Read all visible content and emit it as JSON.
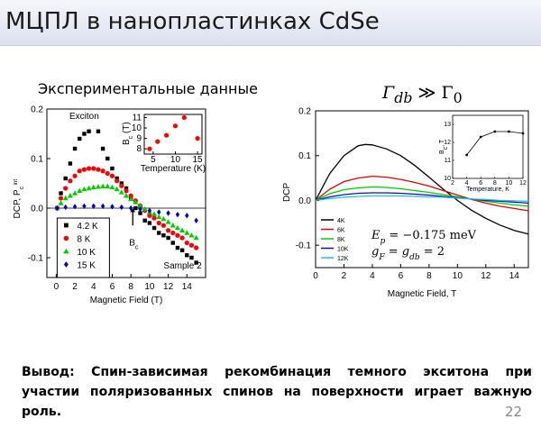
{
  "slide": {
    "title": "МЦПЛ в нанопластинках CdSe",
    "left_caption": "Экспериментальные данные",
    "right_caption": {
      "g1": "Γ",
      "s1": "db",
      "rel": "≫",
      "g2": "Γ",
      "s2": "0"
    },
    "conclusion": "Вывод: Спин-зависимая рекомбинация темного экситона при участии поляризованных спинов на поверхности играет важную роль.",
    "page_number": "22"
  },
  "chart_data": [
    {
      "type": "scatter",
      "xlabel": "Magnetic Field (T)",
      "ylabel": "DCP, P",
      "ylabel_sub": "c",
      "ylabel_sup": "int",
      "xlim": [
        -1,
        16
      ],
      "ylim": [
        -0.14,
        0.2
      ],
      "xticks": [
        "0",
        "2",
        "4",
        "6",
        "8",
        "10",
        "12",
        "14"
      ],
      "yticks": [
        "-0.1",
        "0.0",
        "0.1",
        "0.2"
      ],
      "annotations": {
        "exciton": "Exciton",
        "bc": "B",
        "bc_sub": "c",
        "sample": "Sample 2"
      },
      "legend_position": "lower-left",
      "series": [
        {
          "name": "4.2 K",
          "color": "#000000",
          "marker": "square",
          "x": [
            0.1,
            0.5,
            1.0,
            1.5,
            2.0,
            2.5,
            3.0,
            3.5,
            4.5,
            5.0,
            5.5,
            6.0,
            6.5,
            7.0,
            7.5,
            8.0,
            8.5,
            9.0,
            9.5,
            10.0,
            10.5,
            11.0,
            11.5,
            12.0,
            12.5,
            13.0,
            13.5,
            14.0,
            14.5,
            15.0
          ],
          "y": [
            0.0,
            0.03,
            0.06,
            0.09,
            0.12,
            0.14,
            0.15,
            0.155,
            0.155,
            0.12,
            0.1,
            0.08,
            0.06,
            0.05,
            0.04,
            0.02,
            0.0,
            -0.01,
            -0.025,
            -0.03,
            -0.04,
            -0.05,
            -0.055,
            -0.06,
            -0.07,
            -0.08,
            -0.085,
            -0.095,
            -0.1,
            -0.11
          ]
        },
        {
          "name": "8 K",
          "color": "#ff0000",
          "marker": "circle",
          "x": [
            0.1,
            0.5,
            1.0,
            1.5,
            2.0,
            2.5,
            3.0,
            3.5,
            4.0,
            4.5,
            5.0,
            5.5,
            6.0,
            6.5,
            7.0,
            7.5,
            8.0,
            8.5,
            9.0,
            9.5,
            10.0,
            10.5,
            11.0,
            11.5,
            12.0,
            12.5,
            13.0,
            13.5,
            14.0,
            14.5,
            15.0
          ],
          "y": [
            0.0,
            0.02,
            0.04,
            0.055,
            0.065,
            0.075,
            0.078,
            0.08,
            0.08,
            0.078,
            0.075,
            0.07,
            0.065,
            0.055,
            0.045,
            0.035,
            0.025,
            0.015,
            0.005,
            -0.005,
            -0.015,
            -0.02,
            -0.03,
            -0.035,
            -0.045,
            -0.05,
            -0.055,
            -0.06,
            -0.07,
            -0.075,
            -0.08
          ]
        },
        {
          "name": "10 K",
          "color": "#00cc00",
          "marker": "triangle",
          "x": [
            0.1,
            0.5,
            1.0,
            1.5,
            2.0,
            2.5,
            3.0,
            3.5,
            4.0,
            4.5,
            5.0,
            5.5,
            6.0,
            6.5,
            7.0,
            7.5,
            8.0,
            8.5,
            9.0,
            9.5,
            10.0,
            10.5,
            11.0,
            11.5,
            12.0,
            12.5,
            13.0,
            13.5,
            14.0,
            14.5,
            15.0
          ],
          "y": [
            0.0,
            0.01,
            0.02,
            0.025,
            0.03,
            0.035,
            0.038,
            0.04,
            0.042,
            0.043,
            0.044,
            0.044,
            0.042,
            0.038,
            0.032,
            0.025,
            0.018,
            0.012,
            0.005,
            -0.002,
            -0.008,
            -0.012,
            -0.018,
            -0.022,
            -0.028,
            -0.035,
            -0.04,
            -0.045,
            -0.05,
            -0.055,
            -0.06
          ]
        },
        {
          "name": "15 K",
          "color": "#0000cc",
          "marker": "diamond",
          "x": [
            0.1,
            1.0,
            2.0,
            3.0,
            4.0,
            5.0,
            6.0,
            7.0,
            8.0,
            9.0,
            10.0,
            11.0,
            12.0,
            13.0,
            14.0,
            15.0
          ],
          "y": [
            0.0,
            0.002,
            0.003,
            0.004,
            0.004,
            0.004,
            0.003,
            0.002,
            0.0,
            -0.002,
            -0.005,
            -0.008,
            -0.01,
            -0.013,
            -0.015,
            -0.025
          ]
        }
      ],
      "inset": {
        "xlabel": "Temperature (K)",
        "ylabel": "B",
        "ylabel_sub": "c",
        "ylabel_unit": "(T)",
        "xlim": [
          3,
          16
        ],
        "ylim": [
          7.5,
          11.3
        ],
        "xticks": [
          "5",
          "10",
          "15"
        ],
        "yticks": [
          "8",
          "9",
          "10",
          "11"
        ],
        "x": [
          4.2,
          6,
          8,
          10,
          12,
          15
        ],
        "y": [
          8.0,
          8.7,
          9.3,
          10.2,
          11.0,
          9.0
        ],
        "color": "#ff0000"
      }
    },
    {
      "type": "line",
      "xlabel": "Magnetic Field, T",
      "ylabel": "DCP",
      "xlim": [
        0,
        15
      ],
      "ylim": [
        -0.15,
        0.2
      ],
      "xticks": [
        "0",
        "2",
        "4",
        "6",
        "8",
        "10",
        "12",
        "14"
      ],
      "yticks": [
        "-0.1",
        "0.0",
        "0.1",
        "0.2"
      ],
      "legend_position": "lower-left",
      "equations": {
        "line1": {
          "v": "E",
          "sub": "p",
          "rest": " = −0.175 meV"
        },
        "line2": {
          "v1": "g",
          "sub1": "F",
          "eq1": " = ",
          "v2": "g",
          "sub2": "db",
          "rest": " = 2"
        }
      },
      "series": [
        {
          "name": "4K",
          "color": "#000000",
          "x": [
            0,
            1,
            2,
            3,
            3.5,
            4,
            5,
            6,
            7,
            8,
            9,
            10,
            11,
            12,
            13,
            14,
            15
          ],
          "y": [
            0,
            0.06,
            0.1,
            0.122,
            0.125,
            0.124,
            0.115,
            0.1,
            0.078,
            0.052,
            0.025,
            0.0,
            -0.022,
            -0.04,
            -0.055,
            -0.067,
            -0.075
          ]
        },
        {
          "name": "6K",
          "color": "#e00000",
          "x": [
            0,
            1,
            2,
            3,
            4,
            5,
            6,
            7,
            8,
            9,
            10,
            11,
            12,
            13,
            14,
            15
          ],
          "y": [
            0,
            0.025,
            0.042,
            0.05,
            0.054,
            0.052,
            0.047,
            0.04,
            0.032,
            0.022,
            0.012,
            0.002,
            -0.006,
            -0.013,
            -0.018,
            -0.023
          ]
        },
        {
          "name": "8K",
          "color": "#00cc00",
          "x": [
            0,
            1,
            2,
            3,
            4,
            5,
            6,
            7,
            8,
            9,
            10,
            11,
            12,
            13,
            14,
            15
          ],
          "y": [
            0,
            0.015,
            0.024,
            0.028,
            0.03,
            0.029,
            0.026,
            0.022,
            0.018,
            0.013,
            0.008,
            0.003,
            -0.002,
            -0.006,
            -0.01,
            -0.013
          ]
        },
        {
          "name": "10K",
          "color": "#1010aa",
          "x": [
            0,
            1,
            2,
            3,
            4,
            5,
            6,
            7,
            8,
            9,
            10,
            11,
            12,
            13,
            14,
            15
          ],
          "y": [
            0,
            0.008,
            0.013,
            0.016,
            0.017,
            0.017,
            0.016,
            0.014,
            0.012,
            0.009,
            0.006,
            0.003,
            0.0,
            -0.002,
            -0.004,
            -0.006
          ]
        },
        {
          "name": "12K",
          "color": "#22bbee",
          "x": [
            0,
            1,
            2,
            3,
            4,
            5,
            6,
            7,
            8,
            9,
            10,
            11,
            12,
            13,
            14,
            15
          ],
          "y": [
            0,
            0.004,
            0.007,
            0.009,
            0.01,
            0.01,
            0.01,
            0.009,
            0.008,
            0.007,
            0.005,
            0.003,
            0.002,
            0.0,
            -0.001,
            -0.002
          ]
        }
      ],
      "inset": {
        "xlabel": "Temperature, K",
        "ylabel": "B",
        "ylabel_sub": "c",
        "ylabel_unit": ", T",
        "xlim": [
          2,
          12
        ],
        "ylim": [
          10,
          13.5
        ],
        "xticks": [
          "2",
          "4",
          "6",
          "8",
          "10",
          "12"
        ],
        "yticks": [
          "10",
          "11",
          "12",
          "13"
        ],
        "x": [
          4,
          6,
          8,
          10,
          12
        ],
        "y": [
          11.3,
          12.3,
          12.6,
          12.6,
          12.5
        ],
        "color": "#000000"
      }
    }
  ]
}
